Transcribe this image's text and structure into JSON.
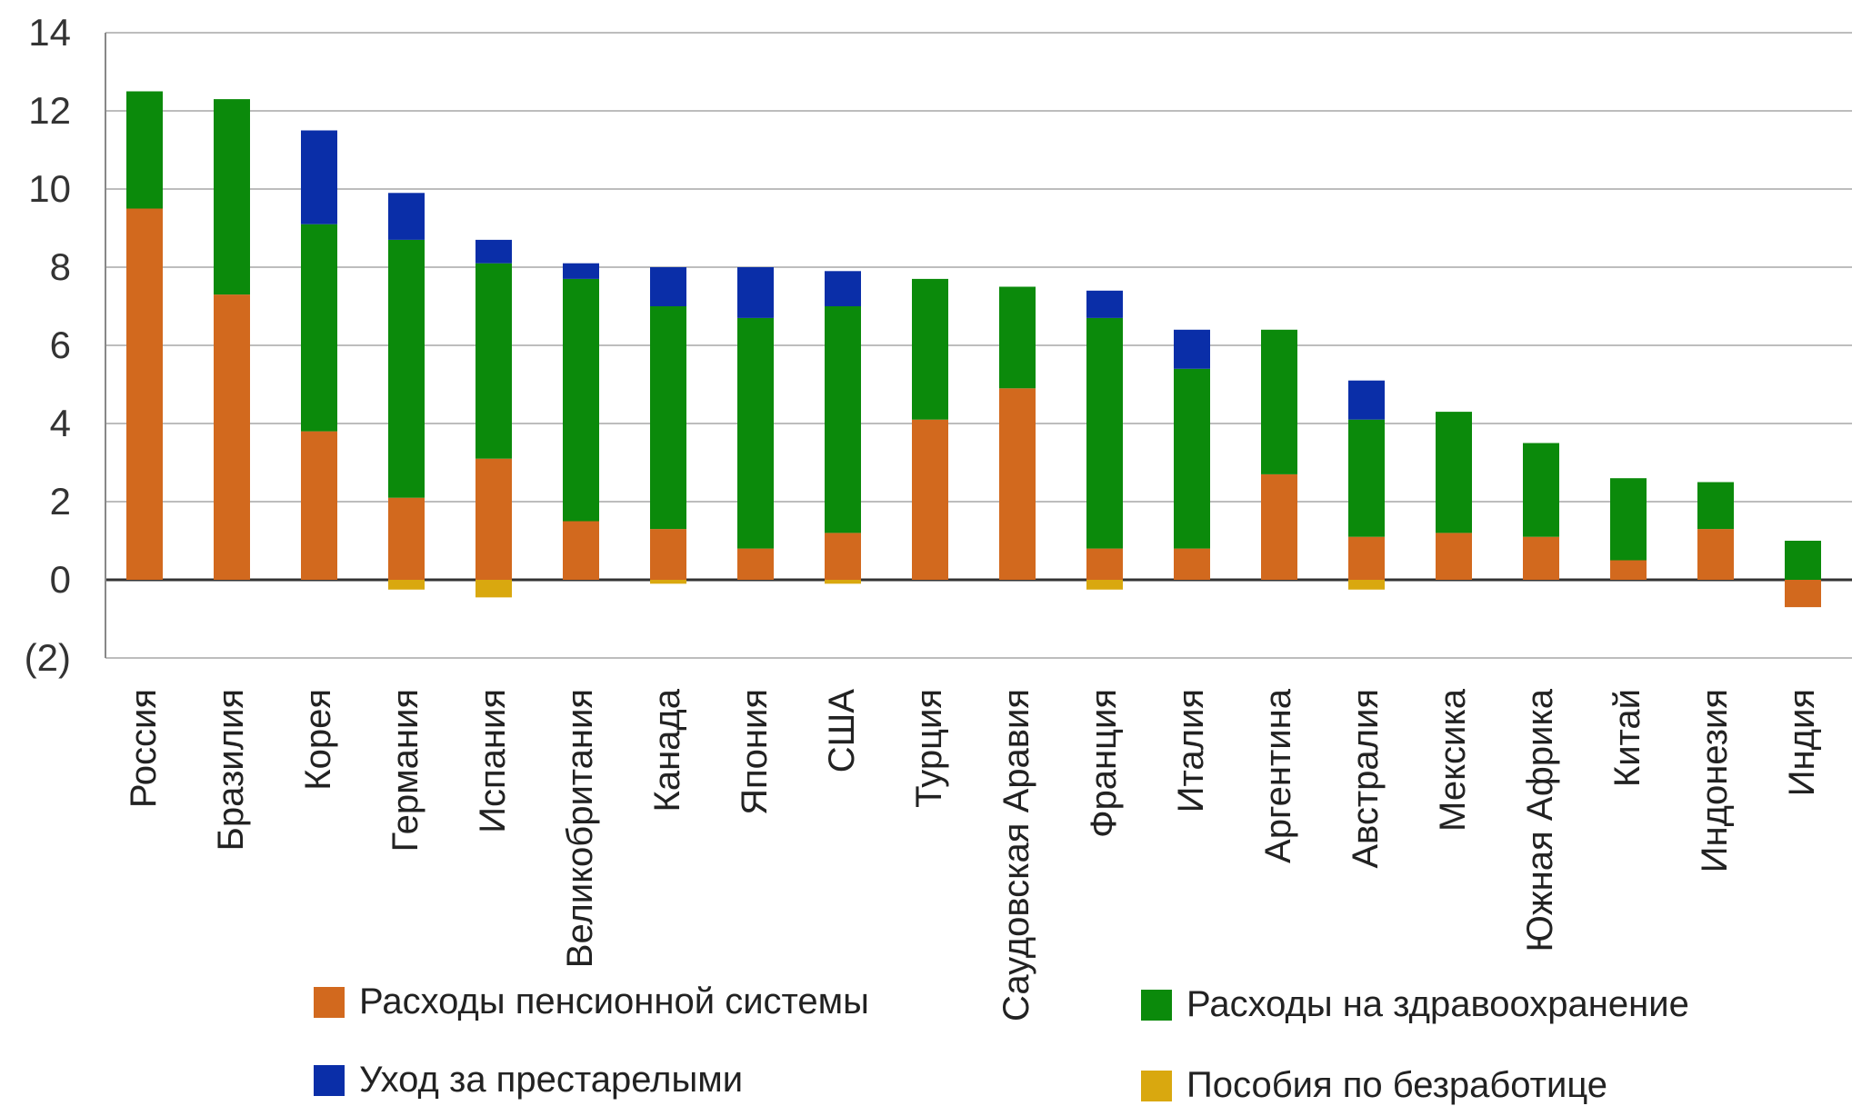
{
  "chart_data": {
    "type": "bar",
    "stacked": true,
    "categories": [
      "Россия",
      "Бразилия",
      "Корея",
      "Германия",
      "Испания",
      "Великобритания",
      "Канада",
      "Япония",
      "США",
      "Турция",
      "Саудовская Аравия",
      "Франция",
      "Италия",
      "Аргентина",
      "Австралия",
      "Мексика",
      "Южная Африка",
      "Китай",
      "Индонезия",
      "Индия"
    ],
    "series": [
      {
        "name": "Расходы пенсионной системы",
        "color": "#d2691e",
        "values": [
          9.5,
          7.3,
          3.8,
          2.1,
          3.1,
          1.5,
          1.3,
          0.8,
          1.2,
          4.1,
          4.9,
          0.8,
          0.8,
          2.7,
          1.1,
          1.2,
          1.1,
          0.5,
          1.3,
          -0.7
        ]
      },
      {
        "name": "Расходы на здравоохранение",
        "color": "#0b8a0b",
        "values": [
          3.0,
          5.0,
          5.3,
          6.6,
          5.0,
          6.2,
          5.7,
          5.9,
          5.8,
          3.6,
          2.6,
          5.9,
          4.6,
          3.7,
          3.0,
          3.1,
          2.4,
          2.1,
          1.2,
          1.0
        ]
      },
      {
        "name": "Уход за престарелыми",
        "color": "#0a2ea8",
        "values": [
          0,
          0,
          2.4,
          1.2,
          0.6,
          0.4,
          1.0,
          1.3,
          0.9,
          0,
          0,
          0.7,
          1.0,
          0,
          1.0,
          0,
          0,
          0,
          0,
          0
        ]
      },
      {
        "name": "Пособия по безработице",
        "color": "#d9a80f",
        "values": [
          0,
          0,
          0,
          -0.25,
          -0.45,
          0,
          -0.1,
          0,
          -0.1,
          0,
          0,
          -0.25,
          0,
          0,
          -0.25,
          0,
          0,
          0,
          0,
          0
        ]
      }
    ],
    "yticks": [
      "14",
      "12",
      "10",
      "8",
      "6",
      "4",
      "2",
      "0",
      "(2)"
    ],
    "ylim": [
      -2,
      14
    ],
    "grid": true,
    "legend_position": "bottom"
  }
}
